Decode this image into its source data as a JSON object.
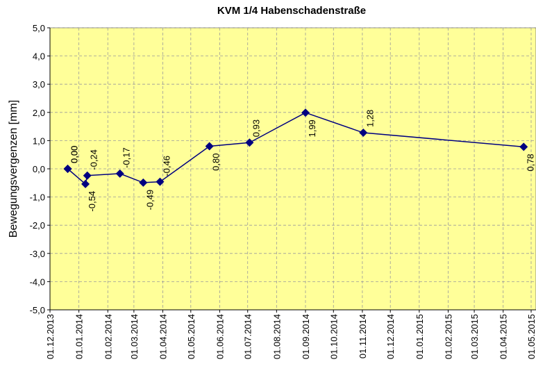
{
  "chart_data": {
    "type": "line",
    "title": "KVM 1/4 Habenschadenstraße",
    "y_label": "Bewegungsvergenzen [mm]",
    "x": [
      "2013-12-20",
      "2013-12-20",
      "2014-01-08",
      "2014-01-10",
      "2014-02-14",
      "2014-03-11",
      "2014-03-29",
      "2014-05-21",
      "2014-07-03",
      "2014-09-01",
      "2014-11-02",
      "2015-04-23"
    ],
    "series": [
      {
        "color": "#000080",
        "values": [
          0.0,
          0.0,
          -0.54,
          -0.24,
          -0.17,
          -0.49,
          -0.46,
          0.8,
          0.93,
          1.99,
          1.28,
          0.78
        ],
        "value_labels": [
          "0,00",
          "0,00",
          "-0,54",
          "-0,24",
          "-0,17",
          "-0,49",
          "-0,46",
          "0,80",
          "0,93",
          "1,99",
          "1,28",
          "0,78"
        ]
      }
    ],
    "xlim": [
      "2013-12-01",
      "2015-05-01"
    ],
    "xticks": [
      {
        "value": "2013-12-01",
        "label": "01.12.2013"
      },
      {
        "value": "2014-01-01",
        "label": "01.01.2014"
      },
      {
        "value": "2014-02-01",
        "label": "01.02.2014"
      },
      {
        "value": "2014-03-01",
        "label": "01.03.2014"
      },
      {
        "value": "2014-04-01",
        "label": "01.04.2014"
      },
      {
        "value": "2014-05-01",
        "label": "01.05.2014"
      },
      {
        "value": "2014-06-01",
        "label": "01.06.2014"
      },
      {
        "value": "2014-07-01",
        "label": "01.07.2014"
      },
      {
        "value": "2014-08-01",
        "label": "01.08.2014"
      },
      {
        "value": "2014-09-01",
        "label": "01.09.2014"
      },
      {
        "value": "2014-10-01",
        "label": "01.10.2014"
      },
      {
        "value": "2014-11-01",
        "label": "01.11.2014"
      },
      {
        "value": "2014-12-01",
        "label": "01.12.2014"
      },
      {
        "value": "2015-01-01",
        "label": "01.01.2015"
      },
      {
        "value": "2015-02-01",
        "label": "01.02.2015"
      },
      {
        "value": "2015-03-01",
        "label": "01.03.2015"
      },
      {
        "value": "2015-04-01",
        "label": "01.04.2015"
      },
      {
        "value": "2015-05-01",
        "label": "01.05.2015"
      }
    ],
    "ylim": [
      -5,
      5
    ],
    "yticks": [
      {
        "value": 5,
        "label": "5,0"
      },
      {
        "value": 4,
        "label": "4,0"
      },
      {
        "value": 3,
        "label": "3,0"
      },
      {
        "value": 2,
        "label": "2,0"
      },
      {
        "value": 1,
        "label": "1,0"
      },
      {
        "value": 0,
        "label": "0,0"
      },
      {
        "value": -1,
        "label": "-1,0"
      },
      {
        "value": -2,
        "label": "-2,0"
      },
      {
        "value": -3,
        "label": "-3,0"
      },
      {
        "value": -4,
        "label": "-4,0"
      },
      {
        "value": -5,
        "label": "-5,0"
      }
    ],
    "grid": true,
    "plot_background": "#ffff99"
  }
}
